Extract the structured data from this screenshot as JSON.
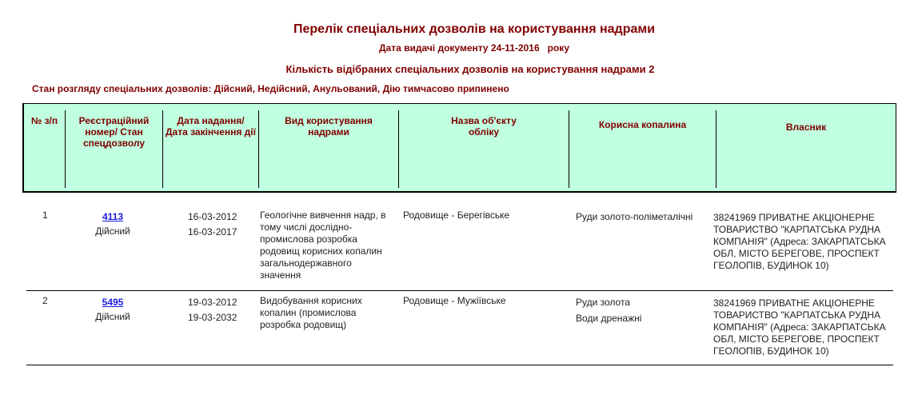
{
  "title": "Перелік спеціальних дозволів на користування надрами",
  "date_label": "Дата видачі документу 24-11-2016   року",
  "count_label": "Кількість відібраних спеціальних дозволів на користування надрами 2",
  "state_label": "Стан розгляду спеціальних дозволів: Дійсний, Недійсний, Анульований, Дію тимчасово припинено",
  "headers": [
    "№ з/п",
    "Реєстраційний номер/ Стан спецдозволу",
    "Дата надання/ Дата закінчення дії",
    "Вид користування надрами",
    "Назва об'єкту обліку",
    "Корисна копалина",
    "Власник"
  ],
  "rows": [
    {
      "num": "1",
      "reg": "4113",
      "status": "Дійсний",
      "date_start": "16-03-2012",
      "date_end": "16-03-2017",
      "usage": "Геологічне вивчення надр, в тому числі дослідно-промислова розробка родовищ корисних копалин загальнодержавного значення",
      "object": "Родовище - Берегівське",
      "minerals": [
        "Руди золото-поліметалічні"
      ],
      "owner": "38241969 ПРИВАТНЕ АКЦІОНЕРНЕ ТОВАРИСТВО \"КАРПАТСЬКА РУДНА КОМПАНІЯ\" (Адреса: ЗАКАРПАТСЬКА ОБЛ, МІСТО БЕРЕГОВЕ, ПРОСПЕКТ ГЕОЛОПІВ, БУДИНОК 10)"
    },
    {
      "num": "2",
      "reg": "5495",
      "status": "Дійсний",
      "date_start": "19-03-2012",
      "date_end": "19-03-2032",
      "usage": "Видобування корисних копалин (промислова розробка родовищ)",
      "object": "Родовище - Мужіївське",
      "minerals": [
        "Руди золота",
        "Води дренажні"
      ],
      "owner": "38241969 ПРИВАТНЕ АКЦІОНЕРНЕ ТОВАРИСТВО \"КАРПАТСЬКА РУДНА КОМПАНІЯ\" (Адреса: ЗАКАРПАТСЬКА ОБЛ, МІСТО БЕРЕГОВЕ, ПРОСПЕКТ ГЕОЛОПІВ, БУДИНОК 10)"
    }
  ]
}
